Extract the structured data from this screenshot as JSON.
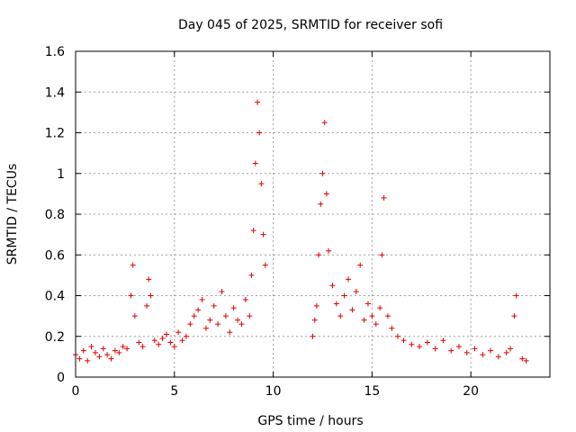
{
  "chart_data": {
    "type": "scatter",
    "title": "Day 045 of 2025, SRMTID for receiver sofi",
    "xlabel": "GPS time / hours",
    "ylabel": "SRMTID / TECUs",
    "xlim": [
      0,
      24
    ],
    "ylim": [
      0,
      1.6
    ],
    "xticks": [
      0,
      5,
      10,
      15,
      20
    ],
    "xtick_labels": [
      "0",
      "5",
      "10",
      "15",
      "20"
    ],
    "yticks": [
      0,
      0.2,
      0.4,
      0.6,
      0.8,
      1.0,
      1.2,
      1.4,
      1.6
    ],
    "ytick_labels": [
      "0",
      "0.2",
      "0.4",
      "0.6",
      "0.8",
      "1",
      "1.2",
      "1.4",
      "1.6"
    ],
    "grid": true,
    "marker": "plus",
    "color": "#e00000",
    "series": [
      {
        "name": "SRMTID",
        "points": [
          [
            0.0,
            0.11
          ],
          [
            0.2,
            0.09
          ],
          [
            0.4,
            0.13
          ],
          [
            0.6,
            0.08
          ],
          [
            0.8,
            0.15
          ],
          [
            1.0,
            0.12
          ],
          [
            1.2,
            0.1
          ],
          [
            1.4,
            0.14
          ],
          [
            1.6,
            0.11
          ],
          [
            1.8,
            0.09
          ],
          [
            2.0,
            0.13
          ],
          [
            2.2,
            0.12
          ],
          [
            2.4,
            0.15
          ],
          [
            2.6,
            0.14
          ],
          [
            2.8,
            0.4
          ],
          [
            2.9,
            0.55
          ],
          [
            3.0,
            0.3
          ],
          [
            3.2,
            0.17
          ],
          [
            3.4,
            0.15
          ],
          [
            3.6,
            0.35
          ],
          [
            3.7,
            0.48
          ],
          [
            3.8,
            0.4
          ],
          [
            4.0,
            0.18
          ],
          [
            4.2,
            0.16
          ],
          [
            4.4,
            0.19
          ],
          [
            4.6,
            0.21
          ],
          [
            4.8,
            0.17
          ],
          [
            5.0,
            0.15
          ],
          [
            5.2,
            0.22
          ],
          [
            5.4,
            0.18
          ],
          [
            5.6,
            0.2
          ],
          [
            5.8,
            0.26
          ],
          [
            6.0,
            0.3
          ],
          [
            6.2,
            0.33
          ],
          [
            6.4,
            0.38
          ],
          [
            6.6,
            0.24
          ],
          [
            6.8,
            0.28
          ],
          [
            7.0,
            0.35
          ],
          [
            7.2,
            0.26
          ],
          [
            7.4,
            0.42
          ],
          [
            7.6,
            0.3
          ],
          [
            7.8,
            0.22
          ],
          [
            8.0,
            0.34
          ],
          [
            8.2,
            0.28
          ],
          [
            8.4,
            0.26
          ],
          [
            8.6,
            0.38
          ],
          [
            8.8,
            0.3
          ],
          [
            8.9,
            0.5
          ],
          [
            9.0,
            0.72
          ],
          [
            9.1,
            1.05
          ],
          [
            9.2,
            1.35
          ],
          [
            9.3,
            1.2
          ],
          [
            9.4,
            0.95
          ],
          [
            9.5,
            0.7
          ],
          [
            9.6,
            0.55
          ],
          [
            12.0,
            0.2
          ],
          [
            12.1,
            0.28
          ],
          [
            12.2,
            0.35
          ],
          [
            12.3,
            0.6
          ],
          [
            12.4,
            0.85
          ],
          [
            12.5,
            1.0
          ],
          [
            12.6,
            1.25
          ],
          [
            12.7,
            0.9
          ],
          [
            12.8,
            0.62
          ],
          [
            13.0,
            0.45
          ],
          [
            13.2,
            0.36
          ],
          [
            13.4,
            0.3
          ],
          [
            13.6,
            0.4
          ],
          [
            13.8,
            0.48
          ],
          [
            14.0,
            0.33
          ],
          [
            14.2,
            0.42
          ],
          [
            14.4,
            0.55
          ],
          [
            14.6,
            0.28
          ],
          [
            14.8,
            0.36
          ],
          [
            15.0,
            0.3
          ],
          [
            15.2,
            0.26
          ],
          [
            15.4,
            0.34
          ],
          [
            15.5,
            0.6
          ],
          [
            15.6,
            0.88
          ],
          [
            15.8,
            0.3
          ],
          [
            16.0,
            0.24
          ],
          [
            16.3,
            0.2
          ],
          [
            16.6,
            0.18
          ],
          [
            17.0,
            0.16
          ],
          [
            17.4,
            0.15
          ],
          [
            17.8,
            0.17
          ],
          [
            18.2,
            0.14
          ],
          [
            18.6,
            0.18
          ],
          [
            19.0,
            0.13
          ],
          [
            19.4,
            0.15
          ],
          [
            19.8,
            0.12
          ],
          [
            20.2,
            0.14
          ],
          [
            20.6,
            0.11
          ],
          [
            21.0,
            0.13
          ],
          [
            21.4,
            0.1
          ],
          [
            21.8,
            0.12
          ],
          [
            22.0,
            0.14
          ],
          [
            22.2,
            0.3
          ],
          [
            22.3,
            0.4
          ],
          [
            22.6,
            0.09
          ],
          [
            22.8,
            0.08
          ]
        ]
      }
    ]
  }
}
